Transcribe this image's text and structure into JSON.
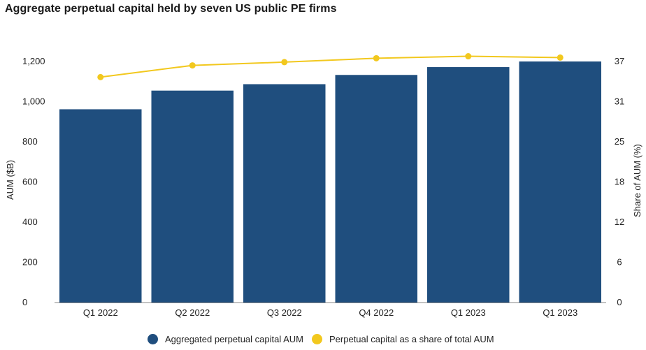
{
  "title": "Aggregate perpetual capital held by seven US public PE firms",
  "colors": {
    "bar": "#1f4e7e",
    "line": "#f2c81e",
    "axis": "#888888"
  },
  "chart_data": {
    "type": "bar",
    "categories": [
      "Q1 2022",
      "Q2 2022",
      "Q3 2022",
      "Q4 2022",
      "Q1 2023",
      "Q1 2023"
    ],
    "series": [
      {
        "name": "Aggregated perpetual capital AUM",
        "type": "bar",
        "axis": "left",
        "values": [
          962,
          1055,
          1087,
          1133,
          1172,
          1200
        ]
      },
      {
        "name": "Perpetual capital as a share of total AUM",
        "type": "line",
        "axis": "right",
        "values": [
          34.6,
          36.4,
          36.9,
          37.5,
          37.8,
          37.6
        ]
      }
    ],
    "ylabel": "AUM ($B)",
    "y2label": "Share of AUM (%)",
    "ylim": [
      0,
      1200
    ],
    "y2lim": [
      0,
      37
    ],
    "yticks": [
      0,
      200,
      400,
      600,
      800,
      "1,000",
      "1,200"
    ],
    "y2ticks": [
      0,
      6,
      12,
      18,
      25,
      31,
      37
    ],
    "grid": false,
    "legend": "bottom-center"
  }
}
